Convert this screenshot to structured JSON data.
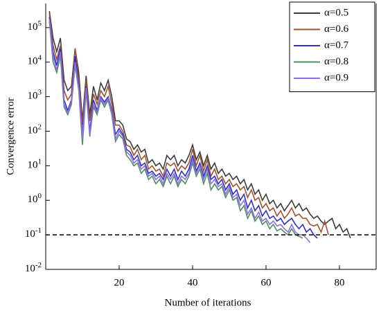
{
  "chart_data": {
    "type": "line",
    "xlabel": "Number of iterations",
    "ylabel": "Convergence error",
    "x": [
      1,
      2,
      3,
      4,
      5,
      6,
      7,
      8,
      9,
      10,
      11,
      12,
      13,
      14,
      15,
      16,
      17,
      18,
      19,
      20,
      21,
      22,
      23,
      24,
      25,
      26,
      27,
      28,
      29,
      30,
      31,
      32,
      33,
      34,
      35,
      36,
      37,
      38,
      39,
      40,
      41,
      42,
      43,
      44,
      45,
      46,
      47,
      48,
      49,
      50,
      51,
      52,
      53,
      54,
      55,
      56,
      57,
      58,
      59,
      60,
      61,
      62,
      63,
      64,
      65,
      66,
      67,
      68,
      69,
      70,
      71,
      72,
      73,
      74,
      75,
      76,
      77,
      78,
      79,
      80,
      81,
      82,
      83
    ],
    "series": [
      {
        "name": "α=0.5",
        "color": "#3b3b3b",
        "values": [
          300000,
          50000,
          20000,
          50000,
          3000,
          1500,
          2000,
          25000,
          5000,
          200,
          4000,
          300,
          2000,
          800,
          2500,
          1500,
          3000,
          1000,
          200,
          200,
          150,
          60,
          50,
          30,
          40,
          25,
          30,
          12,
          15,
          10,
          12,
          8,
          20,
          15,
          20,
          10,
          15,
          12,
          20,
          40,
          15,
          25,
          10,
          20,
          8,
          12,
          6,
          8,
          5,
          6,
          4,
          5,
          3,
          4,
          2,
          3,
          1.5,
          2,
          1,
          1.5,
          0.8,
          1,
          0.6,
          0.8,
          0.5,
          0.7,
          1,
          0.6,
          0.8,
          0.5,
          0.6,
          0.4,
          0.3,
          0.35,
          0.25,
          0.2,
          0.25,
          0.3,
          0.15,
          0.2,
          0.12,
          0.15,
          0.08
        ]
      },
      {
        "name": "α=0.6",
        "color": "#a0522d",
        "values": [
          250000,
          30000,
          12000,
          30000,
          1500,
          800,
          1200,
          25000,
          3000,
          150,
          3000,
          200,
          1200,
          600,
          1500,
          1000,
          2000,
          600,
          150,
          150,
          100,
          40,
          35,
          20,
          30,
          15,
          20,
          8,
          10,
          7,
          8,
          5,
          12,
          10,
          12,
          7,
          10,
          8,
          12,
          30,
          10,
          20,
          7,
          15,
          5,
          8,
          4,
          5,
          3,
          4,
          2.5,
          3,
          2,
          2.5,
          1.2,
          2,
          1,
          1.2,
          0.6,
          0.8,
          0.5,
          0.6,
          0.35,
          0.5,
          0.3,
          0.4,
          0.6,
          0.35,
          0.4,
          0.3,
          0.3,
          0.2,
          0.18,
          0.2,
          0.12,
          0.25,
          0.1,
          null,
          null,
          null,
          null,
          null,
          null
        ]
      },
      {
        "name": "α=0.7",
        "color": "#2f2fc8",
        "values": [
          200000,
          20000,
          8000,
          25000,
          800,
          400,
          800,
          15000,
          2000,
          80,
          2000,
          100,
          800,
          400,
          1000,
          700,
          1000,
          400,
          80,
          120,
          80,
          30,
          25,
          15,
          20,
          10,
          12,
          6,
          7,
          5,
          6,
          4,
          8,
          5,
          8,
          4,
          7,
          5,
          8,
          20,
          7,
          12,
          5,
          10,
          4,
          5,
          3,
          4,
          2,
          3,
          1.5,
          2,
          1,
          1.5,
          0.6,
          1,
          0.5,
          0.7,
          0.35,
          0.5,
          0.3,
          0.35,
          0.25,
          0.3,
          0.2,
          0.25,
          0.3,
          0.2,
          0.15,
          0.2,
          0.12,
          0.15,
          0.1,
          0.08,
          null,
          null,
          null,
          null,
          null,
          null,
          null,
          null,
          null
        ]
      },
      {
        "name": "α=0.8",
        "color": "#4f8f5f",
        "values": [
          150000,
          10000,
          5000,
          15000,
          500,
          300,
          600,
          8000,
          1500,
          40,
          1500,
          70,
          500,
          300,
          800,
          500,
          800,
          300,
          50,
          80,
          60,
          20,
          15,
          10,
          12,
          6,
          8,
          4,
          5,
          3,
          4,
          2.5,
          5,
          3,
          5,
          2.5,
          4,
          3,
          5,
          12,
          5,
          8,
          3,
          6,
          2,
          3,
          2,
          2.5,
          1.2,
          2,
          1,
          1.2,
          0.5,
          0.7,
          0.3,
          0.5,
          0.25,
          0.35,
          0.2,
          0.25,
          0.15,
          0.2,
          0.13,
          0.15,
          0.12,
          0.1,
          0.15,
          0.1,
          0.09,
          0.08,
          null,
          null,
          null,
          null,
          null,
          null,
          null,
          null,
          null,
          null,
          null,
          null,
          null
        ]
      },
      {
        "name": "α=0.9",
        "color": "#8c6fe6",
        "values": [
          180000,
          15000,
          6000,
          20000,
          600,
          350,
          700,
          10000,
          1800,
          60,
          1800,
          80,
          600,
          350,
          900,
          600,
          900,
          350,
          60,
          100,
          70,
          25,
          20,
          12,
          15,
          8,
          10,
          5,
          6,
          4,
          5,
          3,
          6,
          4,
          6,
          3,
          5,
          4,
          6,
          15,
          6,
          10,
          4,
          8,
          3,
          4,
          2.5,
          3,
          1.5,
          2.5,
          1.2,
          1.5,
          0.7,
          1,
          0.4,
          0.6,
          0.3,
          0.45,
          0.25,
          0.3,
          0.2,
          0.25,
          0.18,
          0.2,
          0.15,
          0.12,
          0.2,
          0.12,
          0.1,
          0.1,
          0.08,
          0.06,
          null,
          null,
          null,
          null,
          null,
          null,
          null,
          null,
          null,
          null,
          null
        ]
      }
    ],
    "xlim": [
      0,
      90
    ],
    "xticks": [
      20,
      40,
      60,
      80
    ],
    "ylim": [
      0.01,
      500000
    ],
    "log_y": true,
    "yticks": [
      {
        "value": 0.01,
        "label": "10",
        "exponent": "-2"
      },
      {
        "value": 0.1,
        "label": "10",
        "exponent": "-1"
      },
      {
        "value": 1,
        "label": "10",
        "exponent": "0"
      },
      {
        "value": 10,
        "label": "10",
        "exponent": "1"
      },
      {
        "value": 100,
        "label": "10",
        "exponent": "2"
      },
      {
        "value": 1000,
        "label": "10",
        "exponent": "3"
      },
      {
        "value": 10000,
        "label": "10",
        "exponent": "4"
      },
      {
        "value": 100000,
        "label": "10",
        "exponent": "5"
      }
    ],
    "hline": 0.1,
    "legend": "upper right"
  }
}
